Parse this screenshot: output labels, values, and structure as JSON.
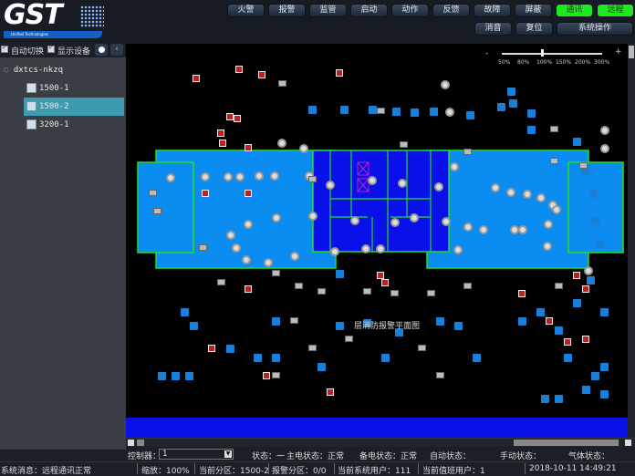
{
  "logo": {
    "text": "GST",
    "tagline": "Unified Technologies"
  },
  "toolbar": {
    "row1": [
      {
        "label": "火警"
      },
      {
        "label": "报警"
      },
      {
        "label": "监管"
      },
      {
        "label": "启动"
      },
      {
        "label": "动作"
      },
      {
        "label": "反馈"
      },
      {
        "label": "故障"
      },
      {
        "label": "屏蔽"
      },
      {
        "label": "通讯",
        "active": true
      },
      {
        "label": "远程",
        "active": true
      }
    ],
    "row2": [
      {
        "label": "消音"
      },
      {
        "label": "复位"
      },
      {
        "label": "系统操作"
      }
    ]
  },
  "sidebar": {
    "auto_switch": {
      "label": "自动切换",
      "checked": true
    },
    "show_devices": {
      "label": "显示设备",
      "checked": true
    },
    "tree_root": "dxtcs-nkzq",
    "items": [
      {
        "label": "1500-1"
      },
      {
        "label": "1500-2",
        "selected": true
      },
      {
        "label": "3200-1"
      }
    ]
  },
  "zoom": {
    "minus": "-",
    "plus": "+",
    "ticks": [
      "50%",
      "80%",
      "100%",
      "150%",
      "200%",
      "300%"
    ],
    "value": "100%"
  },
  "floorplan": {
    "title": "层消防报警平面图"
  },
  "status": {
    "controller_label": "控制器：",
    "controller_value": "1",
    "state": "状态：一",
    "main_power": "主电状态：正常",
    "backup_power": "备电状态：正常",
    "auto_state": "自动状态：",
    "manual_state": "手动状态：",
    "gas_state": "气体状态："
  },
  "footer": {
    "message": "系统消息：远程通讯正常",
    "zoom": "缩放：100%",
    "current_zone": "当前分区：1500-2",
    "alarm_zone": "报警分区：0/0",
    "current_user": "当前系统用户：111",
    "duty_user": "当前值班用户：1",
    "datetime": "2018-10-11 14:49:21"
  },
  "colors": {
    "accent_green": "#1ee81e",
    "selected": "#3d9bb0",
    "room": "#0a8cf0",
    "core": "#0a10e8",
    "wall": "#20e020"
  }
}
